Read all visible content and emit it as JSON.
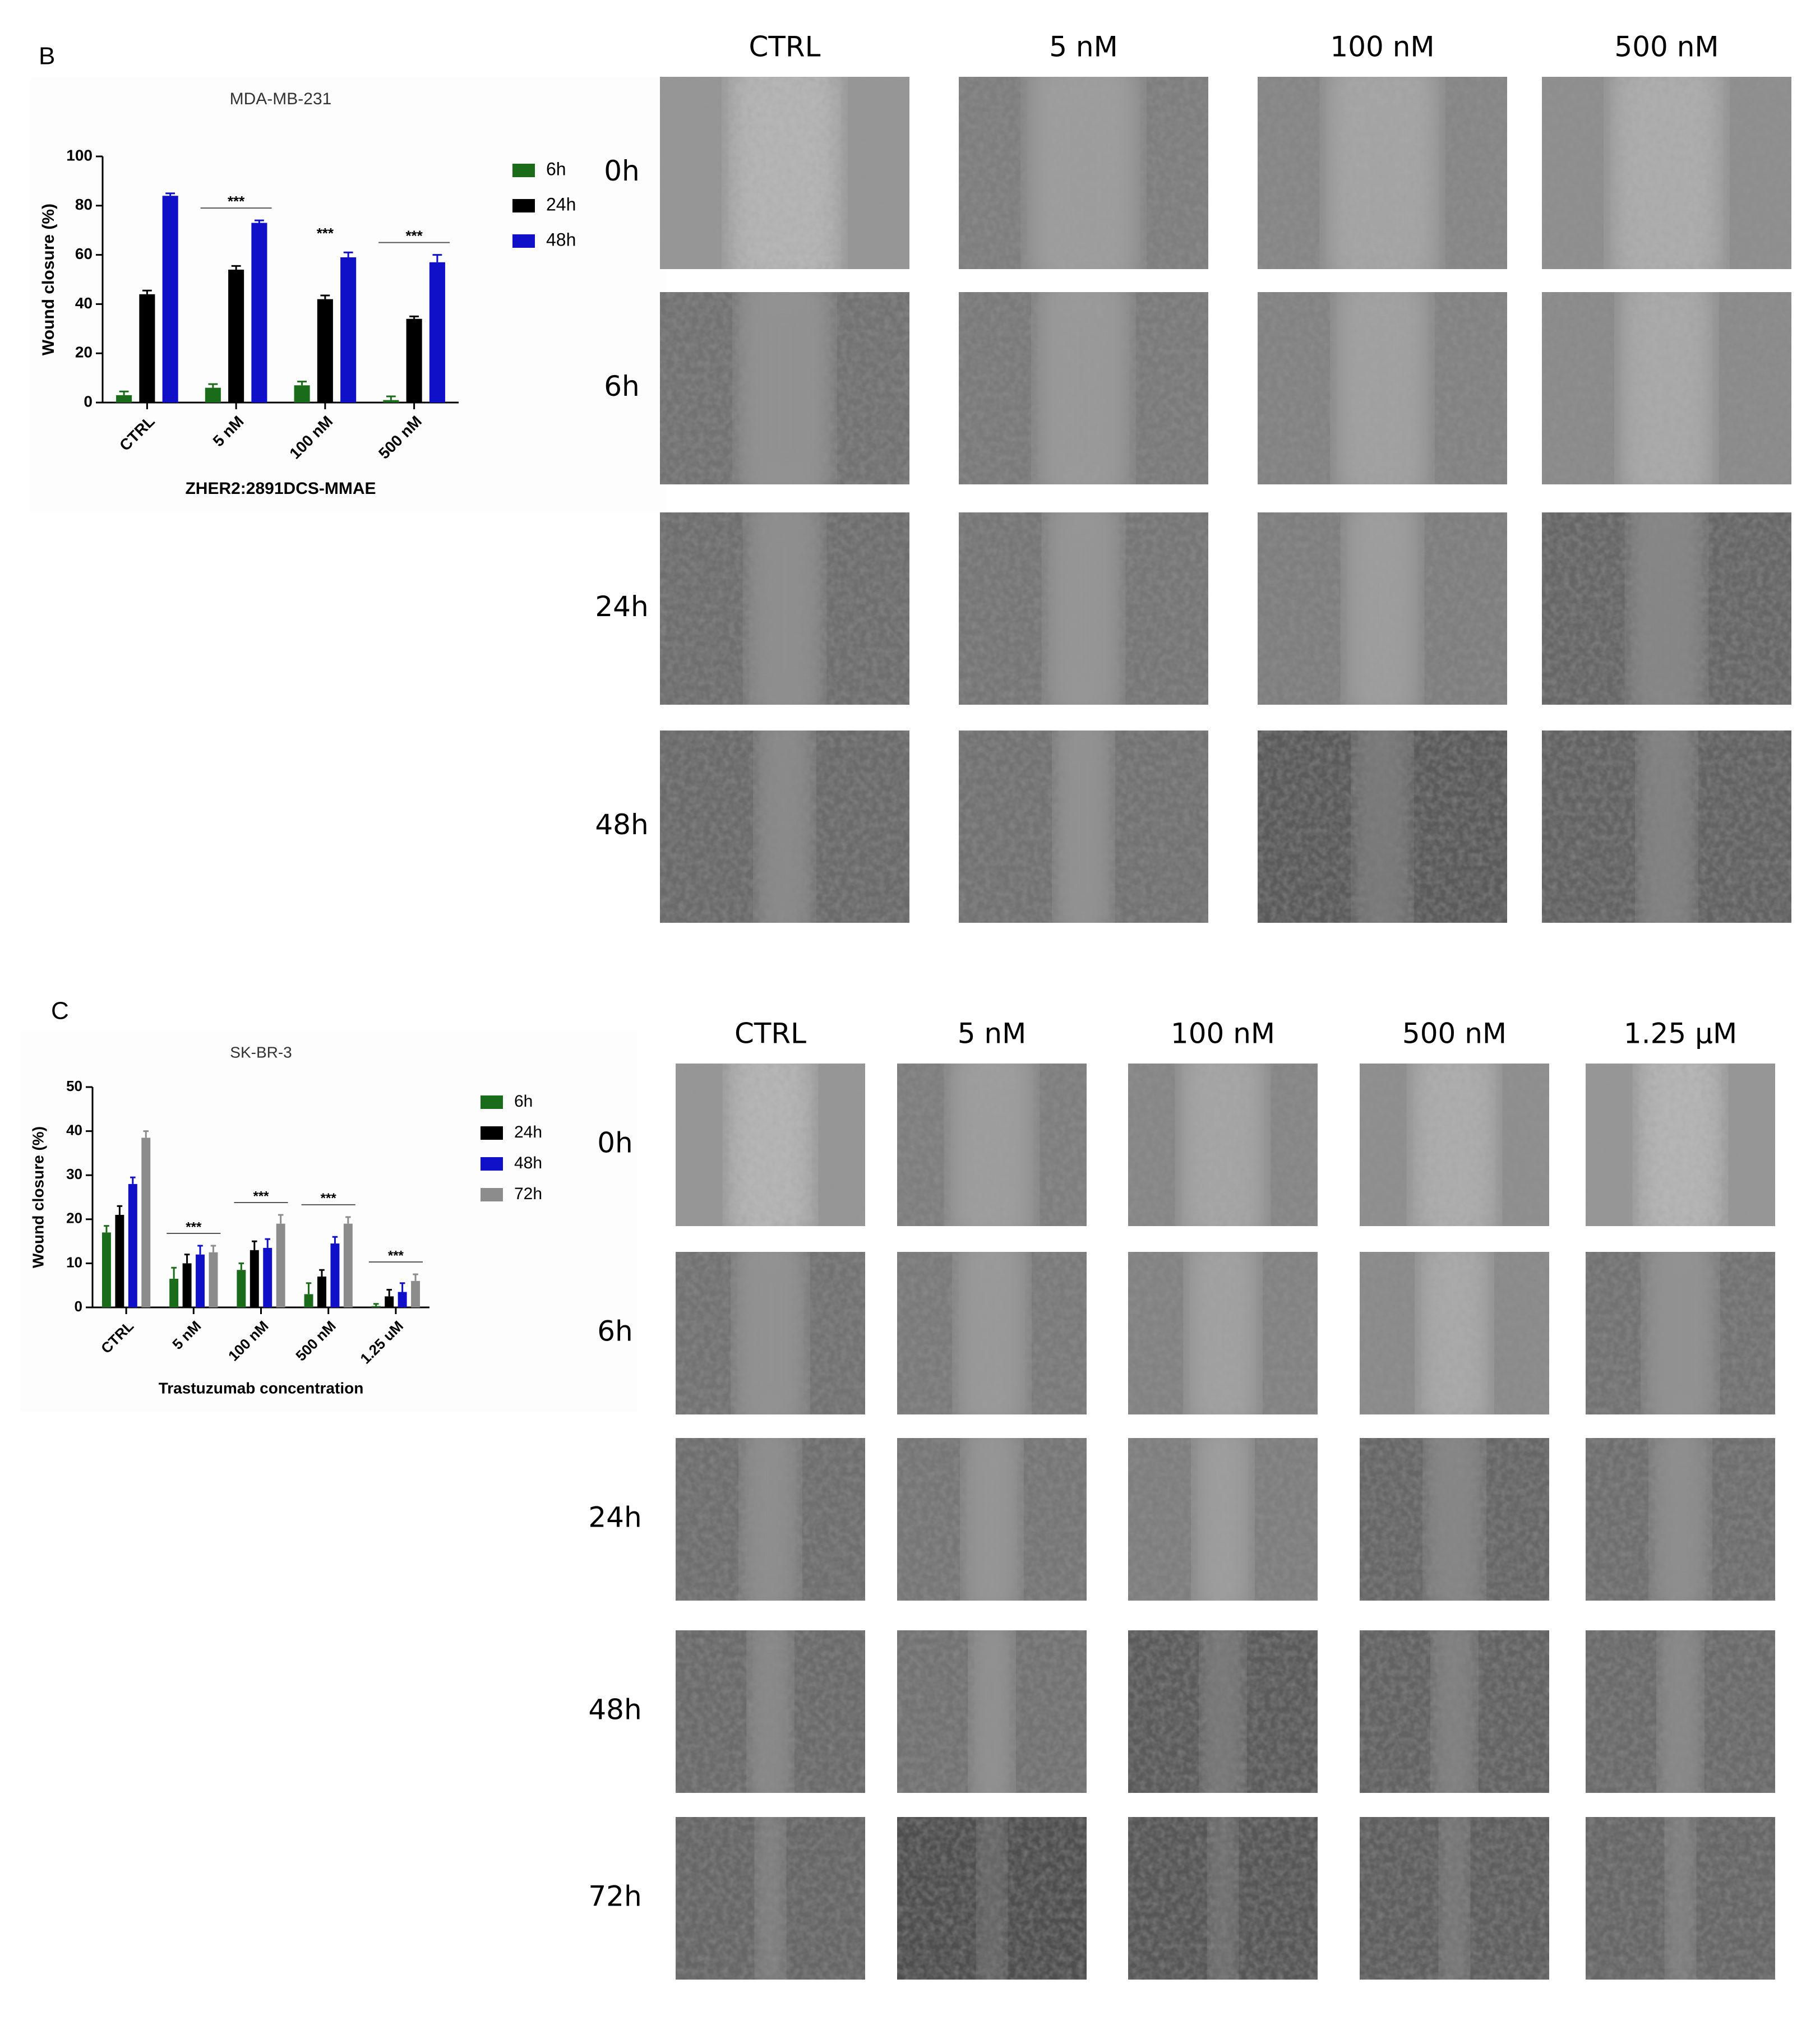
{
  "panel_labels": [
    "B",
    "C"
  ],
  "chart_data": [
    {
      "type": "bar",
      "title": "MDA-MB-231",
      "y_label": "Wound closure (%)",
      "x_label": "ZHER2:2891DCS-MMAE",
      "categories": [
        "CTRL",
        "5 nM",
        "100 nM",
        "500 nM"
      ],
      "series": [
        {
          "name": "6h",
          "color": "#1a6b1a",
          "values": [
            3,
            6,
            7,
            1
          ],
          "errors": [
            1.5,
            1.5,
            1.5,
            1.5
          ]
        },
        {
          "name": "24h",
          "color": "#000000",
          "values": [
            44,
            54,
            42,
            34
          ],
          "errors": [
            1.5,
            1.5,
            1.5,
            1
          ]
        },
        {
          "name": "48h",
          "color": "#1010c8",
          "values": [
            84,
            73,
            59,
            57
          ],
          "errors": [
            1,
            1,
            2,
            3
          ]
        }
      ],
      "ylim": [
        0,
        100
      ],
      "yticks": [
        0,
        20,
        40,
        60,
        80,
        100
      ],
      "significance": [
        {
          "label": "***",
          "category": 1,
          "line": true
        },
        {
          "label": "***",
          "category": 2,
          "line": false
        },
        {
          "label": "***",
          "category": 3,
          "line": true
        }
      ]
    },
    {
      "type": "bar",
      "title": "SK-BR-3",
      "y_label": "Wound closure (%)",
      "x_label": "Trastuzumab concentration",
      "categories": [
        "CTRL",
        "5 nM",
        "100 nM",
        "500 nM",
        "1.25 uM"
      ],
      "series": [
        {
          "name": "6h",
          "color": "#1a6b1a",
          "values": [
            17,
            6.5,
            8.5,
            3,
            0.3
          ],
          "errors": [
            1.5,
            2.5,
            1.5,
            2.5,
            0.5
          ]
        },
        {
          "name": "24h",
          "color": "#000000",
          "values": [
            21,
            10,
            13,
            7,
            2.5
          ],
          "errors": [
            2,
            2,
            2,
            1.5,
            1.5
          ]
        },
        {
          "name": "48h",
          "color": "#1010c8",
          "values": [
            28,
            12,
            13.5,
            14.5,
            3.5
          ],
          "errors": [
            1.5,
            2,
            2,
            1.5,
            2
          ]
        },
        {
          "name": "72h",
          "color": "#8c8c8c",
          "values": [
            38.5,
            12.5,
            19,
            19,
            6
          ],
          "errors": [
            1.5,
            1.5,
            2,
            1.5,
            1.5
          ]
        }
      ],
      "ylim": [
        0,
        50
      ],
      "yticks": [
        0,
        10,
        20,
        30,
        40,
        50
      ],
      "significance": [
        {
          "label": "***",
          "category": 1,
          "line": true
        },
        {
          "label": "***",
          "category": 2,
          "line": true
        },
        {
          "label": "***",
          "category": 3,
          "line": true
        },
        {
          "label": "***",
          "category": 4,
          "line": true
        }
      ]
    }
  ],
  "image_grids": [
    {
      "columns": [
        "CTRL",
        "5 nM",
        "100 nM",
        "500 nM"
      ],
      "rows": [
        "0h",
        "6h",
        "24h",
        "48h"
      ]
    },
    {
      "columns": [
        "CTRL",
        "5 nM",
        "100 nM",
        "500 nM",
        "1.25 µM"
      ],
      "rows": [
        "0h",
        "6h",
        "24h",
        "48h",
        "72h"
      ]
    }
  ]
}
